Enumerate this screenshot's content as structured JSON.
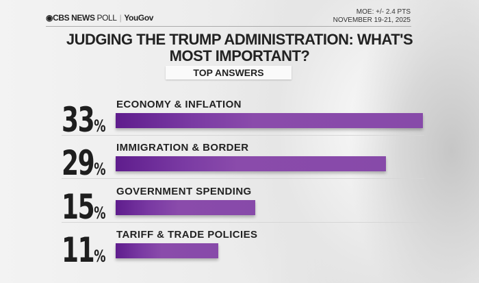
{
  "header": {
    "brand": "CBS NEWS",
    "poll": "POLL",
    "partner": "YouGov",
    "moe": "MOE: +/- 2.4 PTS",
    "dates": "NOVEMBER 19-21, 2025"
  },
  "chart_data": {
    "type": "bar",
    "orientation": "horizontal",
    "title": "JUDGING THE TRUMP ADMINISTRATION: WHAT'S MOST IMPORTANT?",
    "subtitle": "TOP ANSWERS",
    "categories": [
      "ECONOMY & INFLATION",
      "IMMIGRATION & BORDER",
      "GOVERNMENT SPENDING",
      "TARIFF & TRADE POLICIES"
    ],
    "values": [
      33,
      29,
      15,
      11
    ],
    "unit": "%",
    "bar_color": "#874aa9",
    "grid": false
  }
}
